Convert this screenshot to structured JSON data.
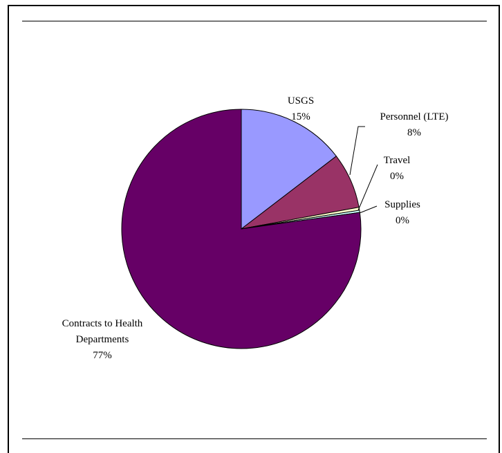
{
  "chart_data": {
    "type": "pie",
    "title": "",
    "start_angle_deg": 0,
    "direction": "clockwise",
    "slices": [
      {
        "label": "USGS",
        "percent_label": "15%",
        "value": 14.6,
        "color": "#9999ff"
      },
      {
        "label": "Personnel (LTE)",
        "percent_label": "8%",
        "value": 7.5,
        "color": "#993366"
      },
      {
        "label": "Travel",
        "percent_label": "0%",
        "value": 0.4,
        "color": "#ffffcc"
      },
      {
        "label": "Supplies",
        "percent_label": "0%",
        "value": 0.3,
        "color": "#ccffff"
      },
      {
        "label": "Contracts to Health Departments",
        "percent_label": "77%",
        "value": 77.2,
        "color": "#660066"
      }
    ],
    "label_lines": [
      "Contracts to Health",
      "Departments"
    ],
    "legend": "none"
  }
}
